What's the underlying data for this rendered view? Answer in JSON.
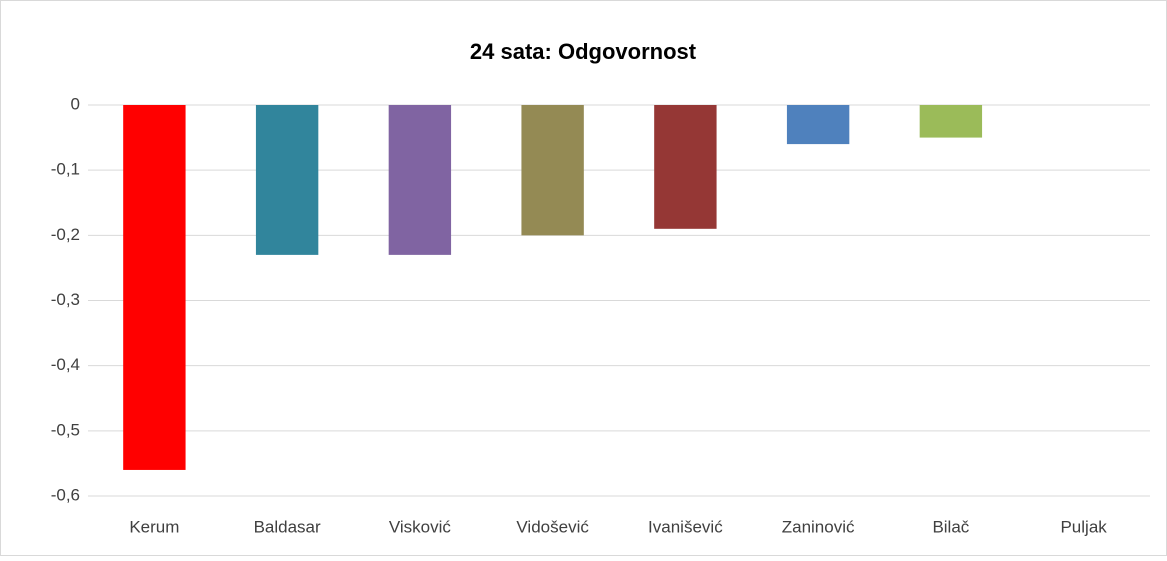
{
  "chart_data": {
    "type": "bar",
    "title": "24 sata: Odgovornost",
    "categories": [
      "Kerum",
      "Baldasar",
      "Visković",
      "Vidošević",
      "Ivanišević",
      "Zaninović",
      "Bilač",
      "Puljak"
    ],
    "values": [
      -0.56,
      -0.23,
      -0.23,
      -0.2,
      -0.19,
      -0.06,
      -0.05,
      0
    ],
    "colors": [
      "#ff0000",
      "#31859c",
      "#8064a2",
      "#948a54",
      "#953735",
      "#4f81bd",
      "#9bbb59",
      "#f79646"
    ],
    "ylim": [
      -0.6,
      0
    ],
    "yticks": [
      0,
      {
        "value": -0.1,
        "label": "-0,1"
      },
      {
        "value": -0.2,
        "label": "-0,2"
      },
      {
        "value": -0.3,
        "label": "-0,3"
      },
      {
        "value": -0.4,
        "label": "-0,4"
      },
      {
        "value": -0.5,
        "label": "-0,5"
      },
      {
        "value": -0.6,
        "label": "-0,6"
      }
    ],
    "grid": true
  }
}
